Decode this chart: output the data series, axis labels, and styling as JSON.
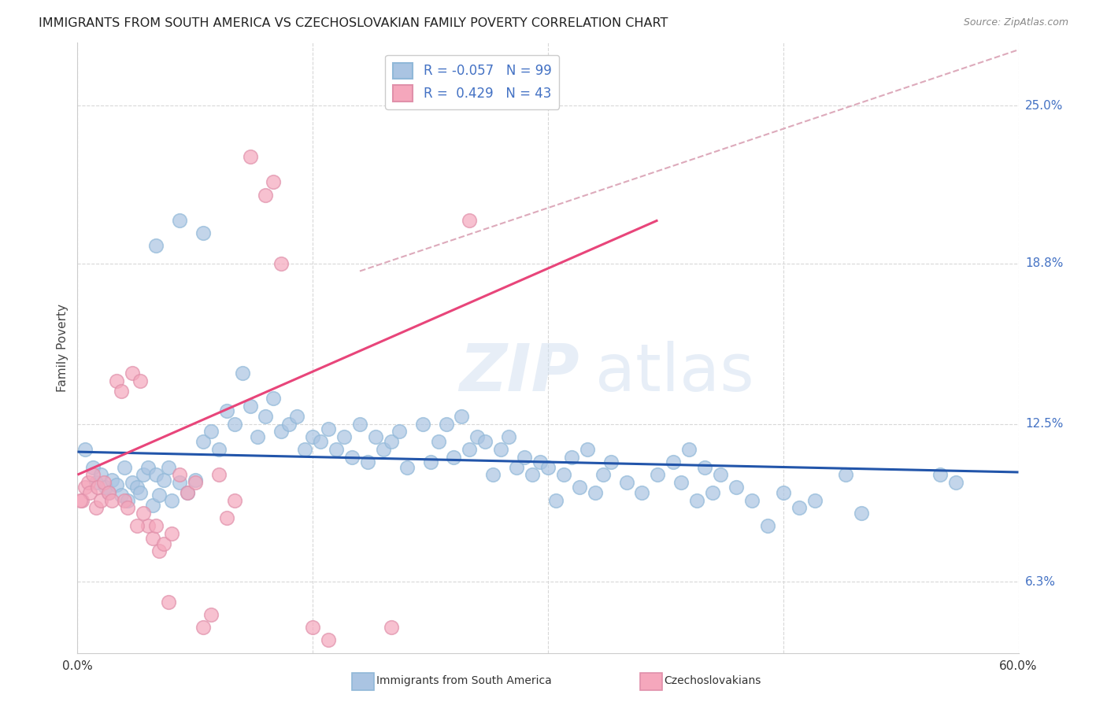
{
  "title": "IMMIGRANTS FROM SOUTH AMERICA VS CZECHOSLOVAKIAN FAMILY POVERTY CORRELATION CHART",
  "source": "Source: ZipAtlas.com",
  "ylabel": "Family Poverty",
  "yticks": [
    6.3,
    12.5,
    18.8,
    25.0
  ],
  "ytick_labels": [
    "6.3%",
    "12.5%",
    "18.8%",
    "25.0%"
  ],
  "xmin": 0.0,
  "xmax": 60.0,
  "ymin": 3.5,
  "ymax": 27.5,
  "blue_R": "-0.057",
  "blue_N": "99",
  "pink_R": "0.429",
  "pink_N": "43",
  "blue_color": "#aac4e2",
  "pink_color": "#f5a7bc",
  "blue_line_color": "#2255aa",
  "pink_line_color": "#e8457a",
  "diag_color": "#ddaabb",
  "watermark_color": "#d0dff0",
  "legend_label_blue": "Immigrants from South America",
  "legend_label_pink": "Czechoslovakians",
  "blue_scatter": [
    [
      0.5,
      11.5
    ],
    [
      1.0,
      10.8
    ],
    [
      1.2,
      10.2
    ],
    [
      1.5,
      10.5
    ],
    [
      1.8,
      10.0
    ],
    [
      2.0,
      9.8
    ],
    [
      2.2,
      10.3
    ],
    [
      2.5,
      10.1
    ],
    [
      2.8,
      9.7
    ],
    [
      3.0,
      10.8
    ],
    [
      3.2,
      9.5
    ],
    [
      3.5,
      10.2
    ],
    [
      3.8,
      10.0
    ],
    [
      4.0,
      9.8
    ],
    [
      4.2,
      10.5
    ],
    [
      4.5,
      10.8
    ],
    [
      4.8,
      9.3
    ],
    [
      5.0,
      10.5
    ],
    [
      5.2,
      9.7
    ],
    [
      5.5,
      10.3
    ],
    [
      5.8,
      10.8
    ],
    [
      6.0,
      9.5
    ],
    [
      6.5,
      10.2
    ],
    [
      7.0,
      9.8
    ],
    [
      7.5,
      10.3
    ],
    [
      8.0,
      11.8
    ],
    [
      8.5,
      12.2
    ],
    [
      9.0,
      11.5
    ],
    [
      9.5,
      13.0
    ],
    [
      10.0,
      12.5
    ],
    [
      10.5,
      14.5
    ],
    [
      11.0,
      13.2
    ],
    [
      11.5,
      12.0
    ],
    [
      12.0,
      12.8
    ],
    [
      12.5,
      13.5
    ],
    [
      13.0,
      12.2
    ],
    [
      13.5,
      12.5
    ],
    [
      14.0,
      12.8
    ],
    [
      14.5,
      11.5
    ],
    [
      15.0,
      12.0
    ],
    [
      15.5,
      11.8
    ],
    [
      16.0,
      12.3
    ],
    [
      16.5,
      11.5
    ],
    [
      17.0,
      12.0
    ],
    [
      17.5,
      11.2
    ],
    [
      18.0,
      12.5
    ],
    [
      18.5,
      11.0
    ],
    [
      19.0,
      12.0
    ],
    [
      19.5,
      11.5
    ],
    [
      20.0,
      11.8
    ],
    [
      20.5,
      12.2
    ],
    [
      21.0,
      10.8
    ],
    [
      22.0,
      12.5
    ],
    [
      22.5,
      11.0
    ],
    [
      23.0,
      11.8
    ],
    [
      23.5,
      12.5
    ],
    [
      24.0,
      11.2
    ],
    [
      24.5,
      12.8
    ],
    [
      25.0,
      11.5
    ],
    [
      25.5,
      12.0
    ],
    [
      26.0,
      11.8
    ],
    [
      26.5,
      10.5
    ],
    [
      27.0,
      11.5
    ],
    [
      27.5,
      12.0
    ],
    [
      28.0,
      10.8
    ],
    [
      28.5,
      11.2
    ],
    [
      29.0,
      10.5
    ],
    [
      29.5,
      11.0
    ],
    [
      30.0,
      10.8
    ],
    [
      30.5,
      9.5
    ],
    [
      31.0,
      10.5
    ],
    [
      31.5,
      11.2
    ],
    [
      32.0,
      10.0
    ],
    [
      32.5,
      11.5
    ],
    [
      33.0,
      9.8
    ],
    [
      33.5,
      10.5
    ],
    [
      34.0,
      11.0
    ],
    [
      35.0,
      10.2
    ],
    [
      36.0,
      9.8
    ],
    [
      37.0,
      10.5
    ],
    [
      38.0,
      11.0
    ],
    [
      38.5,
      10.2
    ],
    [
      39.0,
      11.5
    ],
    [
      39.5,
      9.5
    ],
    [
      40.0,
      10.8
    ],
    [
      40.5,
      9.8
    ],
    [
      41.0,
      10.5
    ],
    [
      42.0,
      10.0
    ],
    [
      43.0,
      9.5
    ],
    [
      44.0,
      8.5
    ],
    [
      45.0,
      9.8
    ],
    [
      46.0,
      9.2
    ],
    [
      47.0,
      9.5
    ],
    [
      49.0,
      10.5
    ],
    [
      50.0,
      9.0
    ],
    [
      55.0,
      10.5
    ],
    [
      56.0,
      10.2
    ],
    [
      5.0,
      19.5
    ],
    [
      6.5,
      20.5
    ],
    [
      8.0,
      20.0
    ]
  ],
  "pink_scatter": [
    [
      0.3,
      9.5
    ],
    [
      0.5,
      10.0
    ],
    [
      0.7,
      10.2
    ],
    [
      0.8,
      9.8
    ],
    [
      1.0,
      10.5
    ],
    [
      1.2,
      9.2
    ],
    [
      1.3,
      10.0
    ],
    [
      1.5,
      9.5
    ],
    [
      1.7,
      10.2
    ],
    [
      2.0,
      9.8
    ],
    [
      2.2,
      9.5
    ],
    [
      2.5,
      14.2
    ],
    [
      2.8,
      13.8
    ],
    [
      3.0,
      9.5
    ],
    [
      3.2,
      9.2
    ],
    [
      3.5,
      14.5
    ],
    [
      4.0,
      14.2
    ],
    [
      4.5,
      8.5
    ],
    [
      4.8,
      8.0
    ],
    [
      5.0,
      8.5
    ],
    [
      5.2,
      7.5
    ],
    [
      5.5,
      7.8
    ],
    [
      5.8,
      5.5
    ],
    [
      6.0,
      8.2
    ],
    [
      6.5,
      10.5
    ],
    [
      7.0,
      9.8
    ],
    [
      7.5,
      10.2
    ],
    [
      8.0,
      4.5
    ],
    [
      8.5,
      5.0
    ],
    [
      9.0,
      10.5
    ],
    [
      9.5,
      8.8
    ],
    [
      10.0,
      9.5
    ],
    [
      11.0,
      23.0
    ],
    [
      12.0,
      21.5
    ],
    [
      12.5,
      22.0
    ],
    [
      13.0,
      18.8
    ],
    [
      15.0,
      4.5
    ],
    [
      16.0,
      4.0
    ],
    [
      20.0,
      4.5
    ],
    [
      25.0,
      20.5
    ],
    [
      0.2,
      9.5
    ],
    [
      3.8,
      8.5
    ],
    [
      4.2,
      9.0
    ]
  ],
  "blue_trend": [
    0.0,
    11.4,
    60.0,
    10.6
  ],
  "pink_trend": [
    0.0,
    10.5,
    37.0,
    20.5
  ],
  "diag_trend": [
    18.0,
    18.5,
    60.0,
    27.2
  ],
  "background_color": "#ffffff",
  "grid_color": "#d8d8d8"
}
